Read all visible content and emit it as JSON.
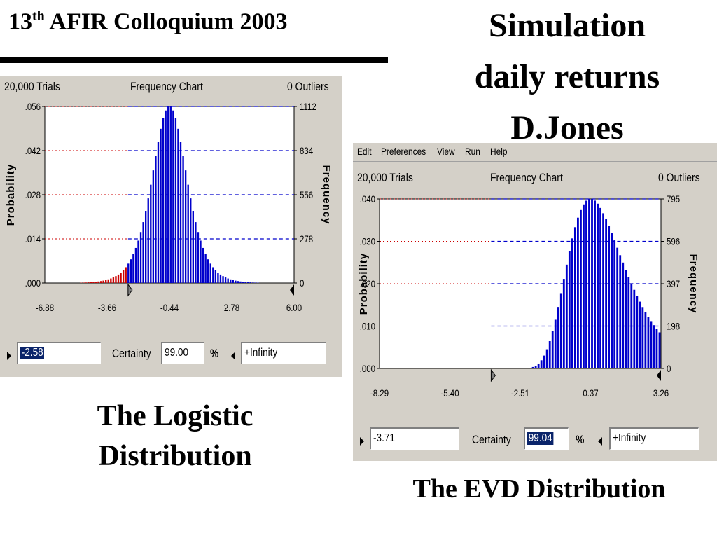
{
  "header": {
    "title_num": "13",
    "title_sup": "th",
    "title_rest": "AFIR Colloquium 2003"
  },
  "slide_title": [
    "Simulation",
    "daily returns",
    "D.Jones"
  ],
  "captions": {
    "left": [
      "The Logistic",
      "Distribution"
    ],
    "right": "The EVD Distribution"
  },
  "colors": {
    "bars": "#0000cc",
    "tail_bars": "#cc0000",
    "grid": "#0000cc",
    "grid_tail": "#cc0000",
    "window_bg": "#d4d0c8"
  },
  "chart_data": [
    {
      "type": "bar",
      "distribution": "logistic",
      "trials_label": "20,000 Trials",
      "title": "Frequency Chart",
      "outliers_label": "0 Outliers",
      "ylabel": "Probability",
      "y2label": "Frequency",
      "xlim": [
        -6.88,
        6.0
      ],
      "ylim": [
        0,
        0.056
      ],
      "x_ticks": [
        "-6.88",
        "-3.66",
        "-0.44",
        "2.78",
        "6.00"
      ],
      "y_ticks": [
        ".000",
        ".014",
        ".028",
        ".042",
        ".056"
      ],
      "y2_ticks": [
        "0",
        "278",
        "556",
        "834",
        "1112"
      ],
      "grid": true,
      "peak": {
        "x": -0.44,
        "y": 0.056
      },
      "left_marker": -2.58,
      "right_marker": 6.0,
      "controls": {
        "lower": "-2.58",
        "certainty_label": "Certainty",
        "certainty": "99.00",
        "percent": "%",
        "upper": "+Infinity"
      }
    },
    {
      "type": "bar",
      "distribution": "EVD",
      "menu": [
        "Edit",
        "Preferences",
        "View",
        "Run",
        "Help"
      ],
      "trials_label": "20,000 Trials",
      "title": "Frequency Chart",
      "outliers_label": "0 Outliers",
      "ylabel": "Probability",
      "y2label": "Frequency",
      "xlim": [
        -8.29,
        3.26
      ],
      "ylim": [
        0,
        0.04
      ],
      "x_ticks": [
        "-8.29",
        "-5.40",
        "-2.51",
        "0.37",
        "3.26"
      ],
      "y_ticks": [
        ".000",
        ".010",
        ".020",
        ".030",
        ".040"
      ],
      "y2_ticks": [
        "0",
        "198",
        "397",
        "596",
        "795"
      ],
      "grid": true,
      "peak": {
        "x": 0.37,
        "y": 0.04
      },
      "left_marker": -3.71,
      "right_marker": 3.26,
      "controls": {
        "lower": "-3.71",
        "certainty_label": "Certainty",
        "certainty": "99.04",
        "percent": "%",
        "upper": "+Infinity"
      }
    }
  ]
}
